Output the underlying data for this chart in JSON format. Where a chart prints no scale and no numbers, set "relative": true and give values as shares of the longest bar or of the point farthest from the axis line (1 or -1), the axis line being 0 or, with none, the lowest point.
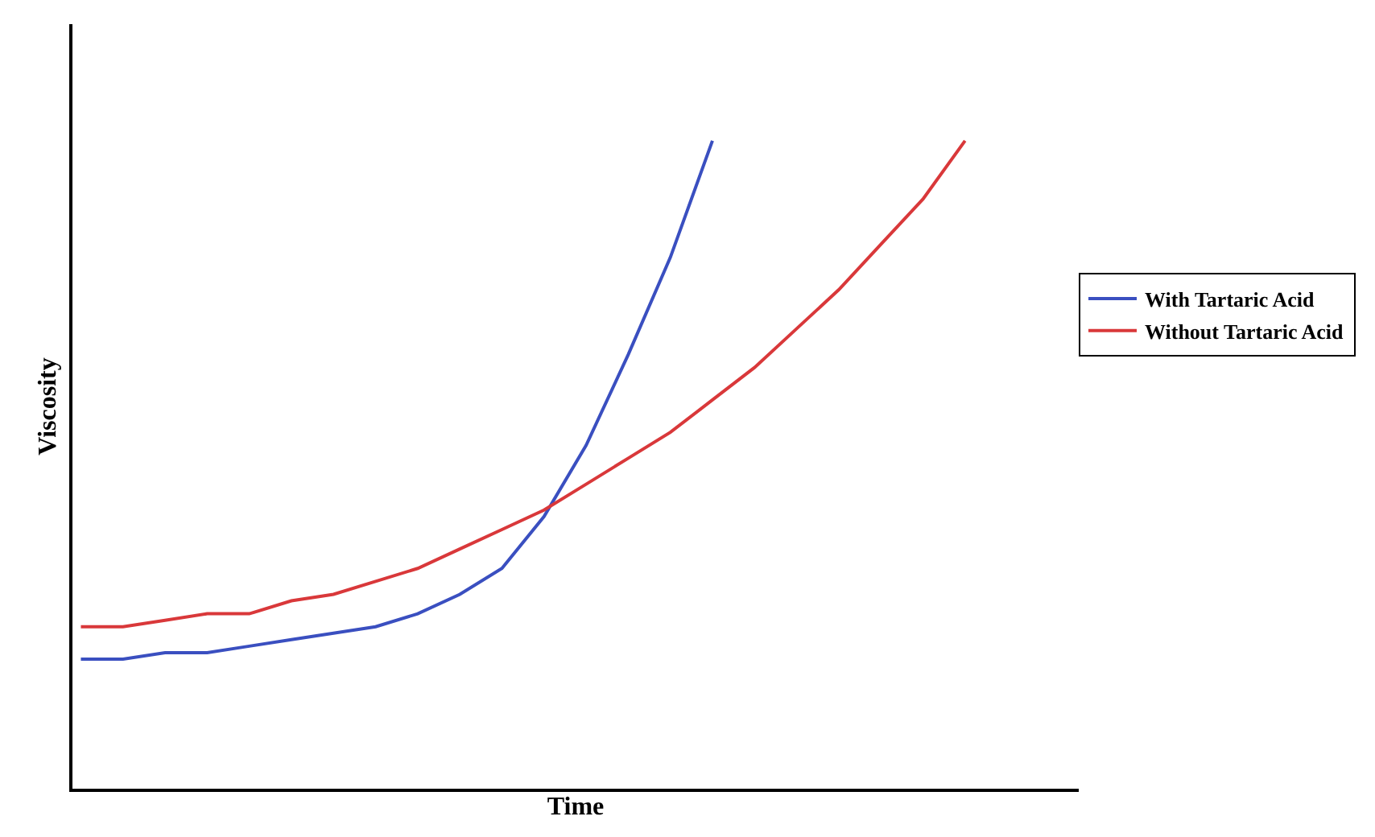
{
  "chart_data": {
    "type": "line",
    "xlabel": "Time",
    "ylabel": "Viscosity",
    "relative": true,
    "legend": "right",
    "marker": "none",
    "line_style": "solid",
    "categories": [
      null,
      null,
      null,
      null,
      null,
      null,
      null,
      null,
      null,
      null,
      null,
      null,
      null,
      null,
      null,
      null,
      null,
      null,
      null,
      null,
      null,
      null
    ],
    "series": [
      {
        "name": "With Tartaric Acid",
        "color": "#3a4fc0",
        "values": [
          0.2,
          0.2,
          0.21,
          0.21,
          0.22,
          0.23,
          0.24,
          0.25,
          0.27,
          0.3,
          0.34,
          0.42,
          0.53,
          0.67,
          0.82,
          1.0,
          null,
          null,
          null,
          null,
          null,
          null
        ]
      },
      {
        "name": "Without Tartaric Acid",
        "color": "#d9383a",
        "values": [
          0.25,
          0.25,
          0.26,
          0.27,
          0.27,
          0.29,
          0.3,
          0.32,
          0.34,
          0.37,
          0.4,
          0.43,
          0.47,
          0.51,
          0.55,
          0.6,
          0.65,
          0.71,
          0.77,
          0.84,
          0.91,
          1.0
        ]
      }
    ]
  }
}
